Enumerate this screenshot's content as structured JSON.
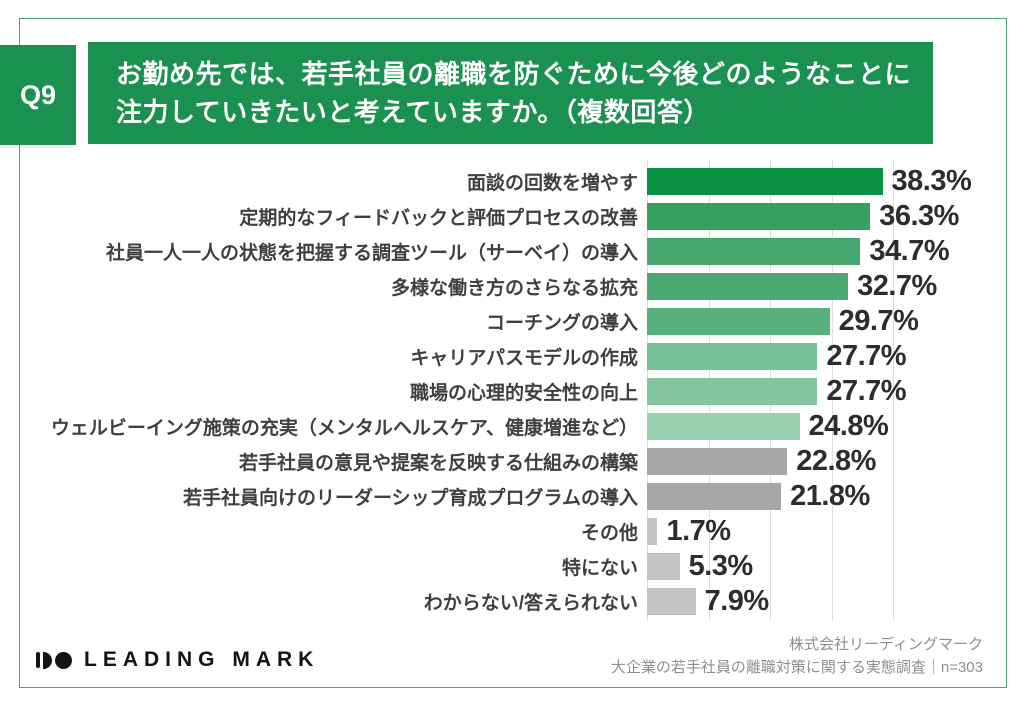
{
  "header": {
    "q_label": "Q9",
    "question_line1": "お勤め先では、若手社員の離職を防ぐために今後どのようなことに",
    "question_line2": "注力していきたいと考えていますか。（複数回答）"
  },
  "chart_data": {
    "type": "bar",
    "orientation": "horizontal",
    "title": "お勤め先では、若手社員の離職を防ぐために今後どのようなことに注力していきたいと考えていますか。（複数回答）",
    "unit": "%",
    "categories": [
      "面談の回数を増やす",
      "定期的なフィードバックと評価プロセスの改善",
      "社員一人一人の状態を把握する調査ツール（サーベイ）の導入",
      "多様な働き方のさらなる拡充",
      "コーチングの導入",
      "キャリアパスモデルの作成",
      "職場の心理的安全性の向上",
      "ウェルビーイング施策の充実（メンタルヘルスケア、健康増進など）",
      "若手社員の意見や提案を反映する仕組みの構築",
      "若手社員向けのリーダーシップ育成プログラムの導入",
      "その他",
      "特にない",
      "わからない/答えられない"
    ],
    "values": [
      38.3,
      36.3,
      34.7,
      32.7,
      29.7,
      27.7,
      27.7,
      24.8,
      22.8,
      21.8,
      1.7,
      5.3,
      7.9
    ],
    "bar_colors": [
      "#0b9144",
      "#35a05f",
      "#46a76e",
      "#4aa972",
      "#58b07d",
      "#77bf94",
      "#84c59e",
      "#9bd0b0",
      "#a7a7a7",
      "#a7a7a7",
      "#c4c4c4",
      "#c4c4c4",
      "#c4c4c4"
    ],
    "xlim": [
      0,
      40
    ],
    "grid": true,
    "grid_step": 10,
    "legend": false
  },
  "footer": {
    "logo_text": "LEADING MARK",
    "source_line1": "株式会社リーディングマーク",
    "source_line2": "大企業の若手社員の離職対策に関する実態調査｜n=303"
  },
  "colors": {
    "brand_green": "#1a9150",
    "card_border_green": "#4ba473",
    "grid_line": "#dedede",
    "category_text": "#3f3f3f",
    "value_text": "#2d2d2d",
    "source_text": "#8f8f8f",
    "logo_black": "#141414",
    "gray_bar": "#a7a7a7",
    "light_gray_bar": "#c4c4c4"
  }
}
